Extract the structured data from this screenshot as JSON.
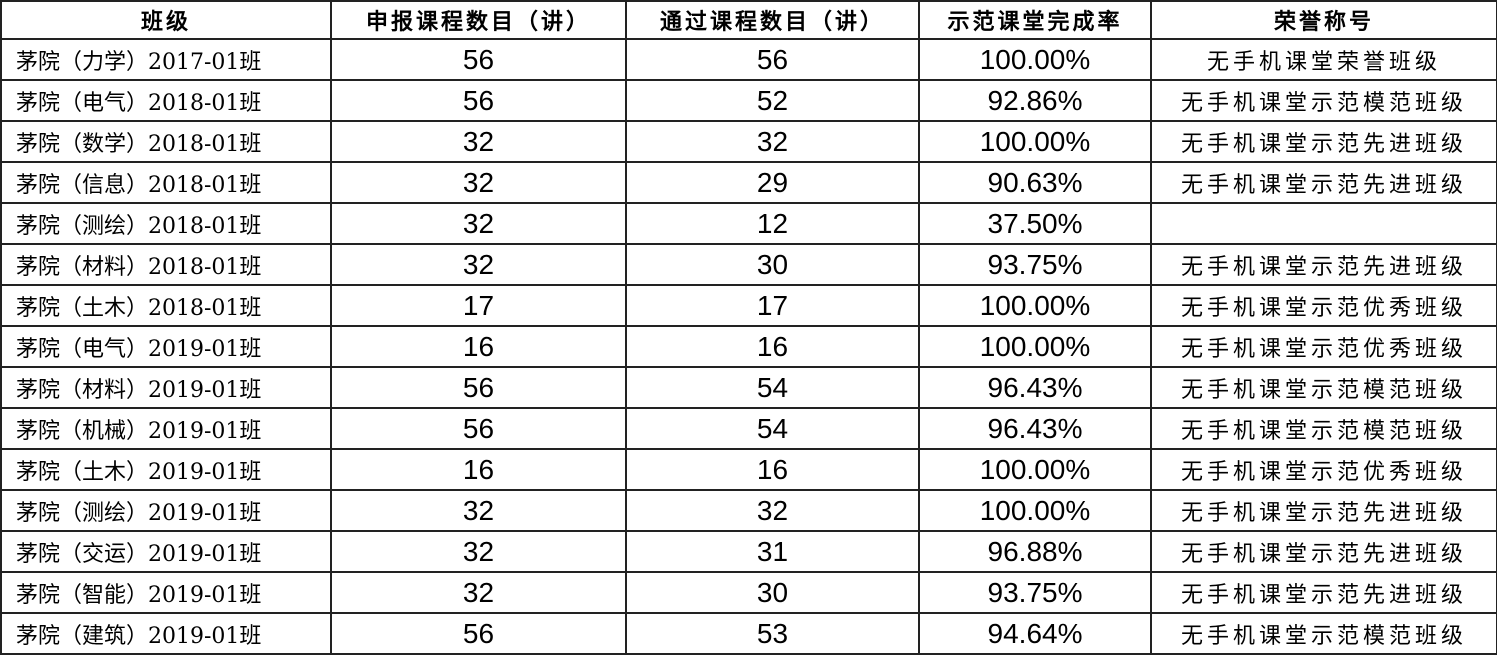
{
  "headers": [
    "班级",
    "申报课程数目（讲）",
    "通过课程数目（讲）",
    "示范课堂完成率",
    "荣誉称号"
  ],
  "rows": [
    [
      "茅院（力学）2017-01班",
      "56",
      "56",
      "100.00%",
      "无手机课堂荣誉班级"
    ],
    [
      "茅院（电气）2018-01班",
      "56",
      "52",
      "92.86%",
      "无手机课堂示范模范班级"
    ],
    [
      "茅院（数学）2018-01班",
      "32",
      "32",
      "100.00%",
      "无手机课堂示范先进班级"
    ],
    [
      "茅院（信息）2018-01班",
      "32",
      "29",
      "90.63%",
      "无手机课堂示范先进班级"
    ],
    [
      "茅院（测绘）2018-01班",
      "32",
      "12",
      "37.50%",
      ""
    ],
    [
      "茅院（材料）2018-01班",
      "32",
      "30",
      "93.75%",
      "无手机课堂示范先进班级"
    ],
    [
      "茅院（土木）2018-01班",
      "17",
      "17",
      "100.00%",
      "无手机课堂示范优秀班级"
    ],
    [
      "茅院（电气）2019-01班",
      "16",
      "16",
      "100.00%",
      "无手机课堂示范优秀班级"
    ],
    [
      "茅院（材料）2019-01班",
      "56",
      "54",
      "96.43%",
      "无手机课堂示范模范班级"
    ],
    [
      "茅院（机械）2019-01班",
      "56",
      "54",
      "96.43%",
      "无手机课堂示范模范班级"
    ],
    [
      "茅院（土木）2019-01班",
      "16",
      "16",
      "100.00%",
      "无手机课堂示范优秀班级"
    ],
    [
      "茅院（测绘）2019-01班",
      "32",
      "32",
      "100.00%",
      "无手机课堂示范先进班级"
    ],
    [
      "茅院（交运）2019-01班",
      "32",
      "31",
      "96.88%",
      "无手机课堂示范先进班级"
    ],
    [
      "茅院（智能）2019-01班",
      "32",
      "30",
      "93.75%",
      "无手机课堂示范先进班级"
    ],
    [
      "茅院（建筑）2019-01班",
      "56",
      "53",
      "94.64%",
      "无手机课堂示范模范班级"
    ]
  ]
}
